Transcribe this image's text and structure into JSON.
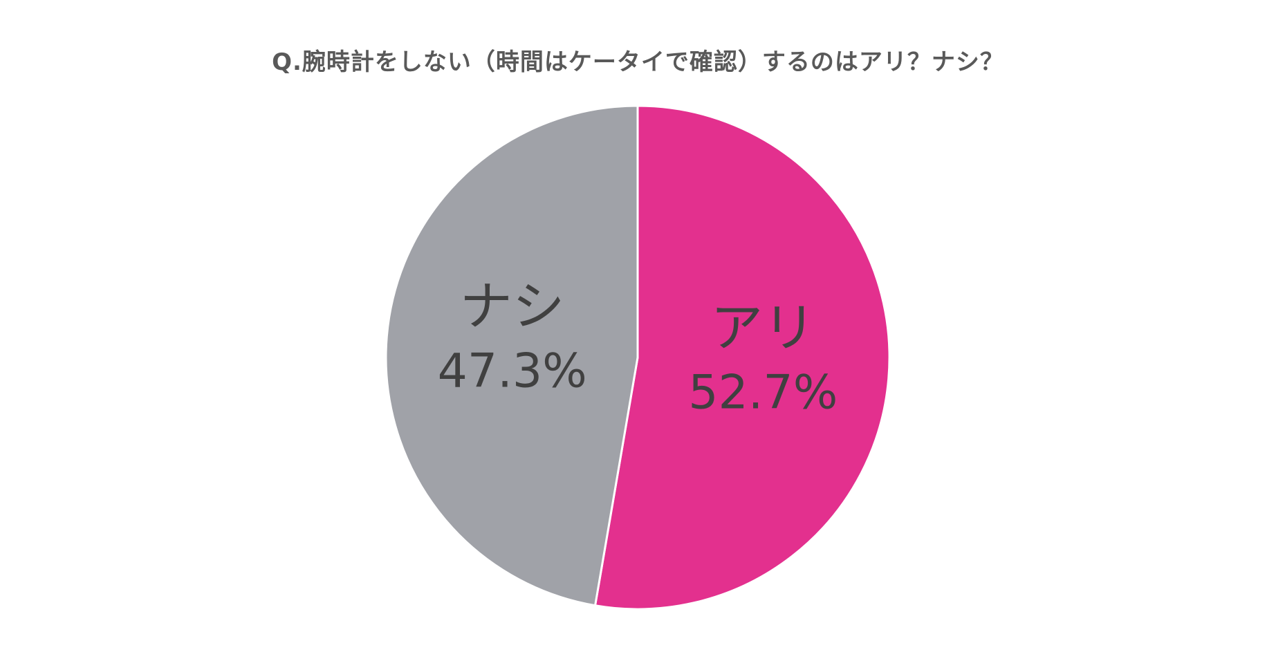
{
  "chart_data": {
    "type": "pie",
    "title": "Q.腕時計をしない（時間はケータイで確認）するのはアリ？ナシ？",
    "slices": [
      {
        "label": "アリ",
        "value": 52.7,
        "display": "52.7%",
        "color": "#E3308E"
      },
      {
        "label": "ナシ",
        "value": 47.3,
        "display": "47.3%",
        "color": "#A0A2A8"
      }
    ],
    "start_angle_deg": 0,
    "direction": "clockwise",
    "legend": "none",
    "unit": "%"
  }
}
